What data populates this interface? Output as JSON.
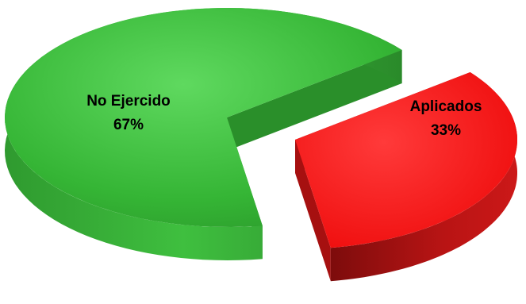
{
  "chart_data": {
    "type": "pie",
    "style": "3d-exploded",
    "slices": [
      {
        "label": "No Ejercido",
        "percent_label": "67%",
        "value": 67,
        "color": "#3bbf3b",
        "side_color": "#2a8f2a"
      },
      {
        "label": "Aplicados",
        "percent_label": "33%",
        "value": 33,
        "color": "#ff1a1a",
        "side_color": "#a61010"
      }
    ]
  }
}
